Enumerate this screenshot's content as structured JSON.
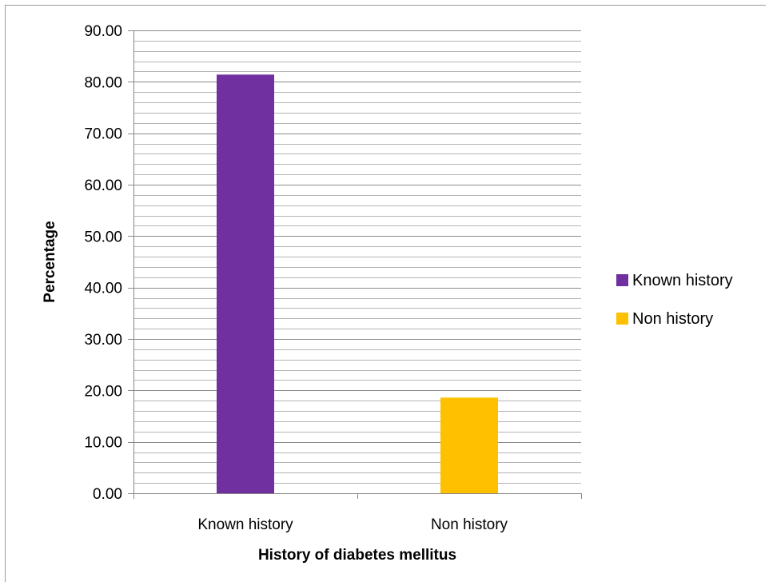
{
  "chart_data": {
    "type": "bar",
    "categories": [
      "Known history",
      "Non history"
    ],
    "values": [
      81.4,
      18.6
    ],
    "colors": [
      "#7030a0",
      "#ffc000"
    ],
    "xlabel": "History of diabetes mellitus",
    "ylabel": "Percentage",
    "ylim": [
      0,
      90
    ],
    "yticks": [
      "0.00",
      "10.00",
      "20.00",
      "30.00",
      "40.00",
      "50.00",
      "60.00",
      "70.00",
      "80.00",
      "90.00"
    ],
    "major_tick_step": 10,
    "minor_tick_step": 2,
    "grid": true,
    "legend": {
      "placement": "right",
      "entries": [
        {
          "label": "Known history",
          "color": "#7030a0"
        },
        {
          "label": "Non history",
          "color": "#ffc000"
        }
      ]
    }
  }
}
